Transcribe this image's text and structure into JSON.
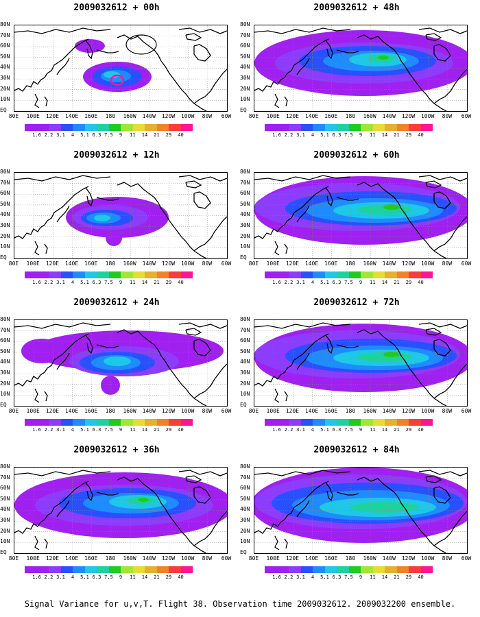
{
  "caption": "Signal Variance for u,v,T. Flight 38. Observation time 2009032612. 2009032200 ensemble.",
  "lat_labels": [
    "80N",
    "70N",
    "60N",
    "50N",
    "40N",
    "30N",
    "20N",
    "10N",
    "EQ"
  ],
  "lon_labels": [
    "80E",
    "100E",
    "120E",
    "140E",
    "160E",
    "180",
    "160W",
    "140W",
    "120W",
    "100W",
    "80W",
    "60W"
  ],
  "colorbar": {
    "colors": [
      "#a020f0",
      "#8c3cfa",
      "#2850ff",
      "#1e8cff",
      "#1ec8e6",
      "#1ed2a0",
      "#1ecc1e",
      "#a0e632",
      "#e6dc32",
      "#e6af2d",
      "#f08228",
      "#fa3c3c",
      "#ff1493"
    ],
    "labels": [
      "1.6",
      "2.2",
      "3.1",
      "4",
      "5.1",
      "6.3",
      "7.5",
      "9",
      "11",
      "14",
      "21",
      "29",
      "40"
    ]
  },
  "panels": [
    {
      "title": "2009032612 + 00h",
      "intensity": 1
    },
    {
      "title": "2009032612 + 48h",
      "intensity": 4
    },
    {
      "title": "2009032612 + 12h",
      "intensity": 2
    },
    {
      "title": "2009032612 + 60h",
      "intensity": 5
    },
    {
      "title": "2009032612 + 24h",
      "intensity": 3
    },
    {
      "title": "2009032612 + 72h",
      "intensity": 5
    },
    {
      "title": "2009032612 + 36h",
      "intensity": 4
    },
    {
      "title": "2009032612 + 84h",
      "intensity": 6
    }
  ]
}
